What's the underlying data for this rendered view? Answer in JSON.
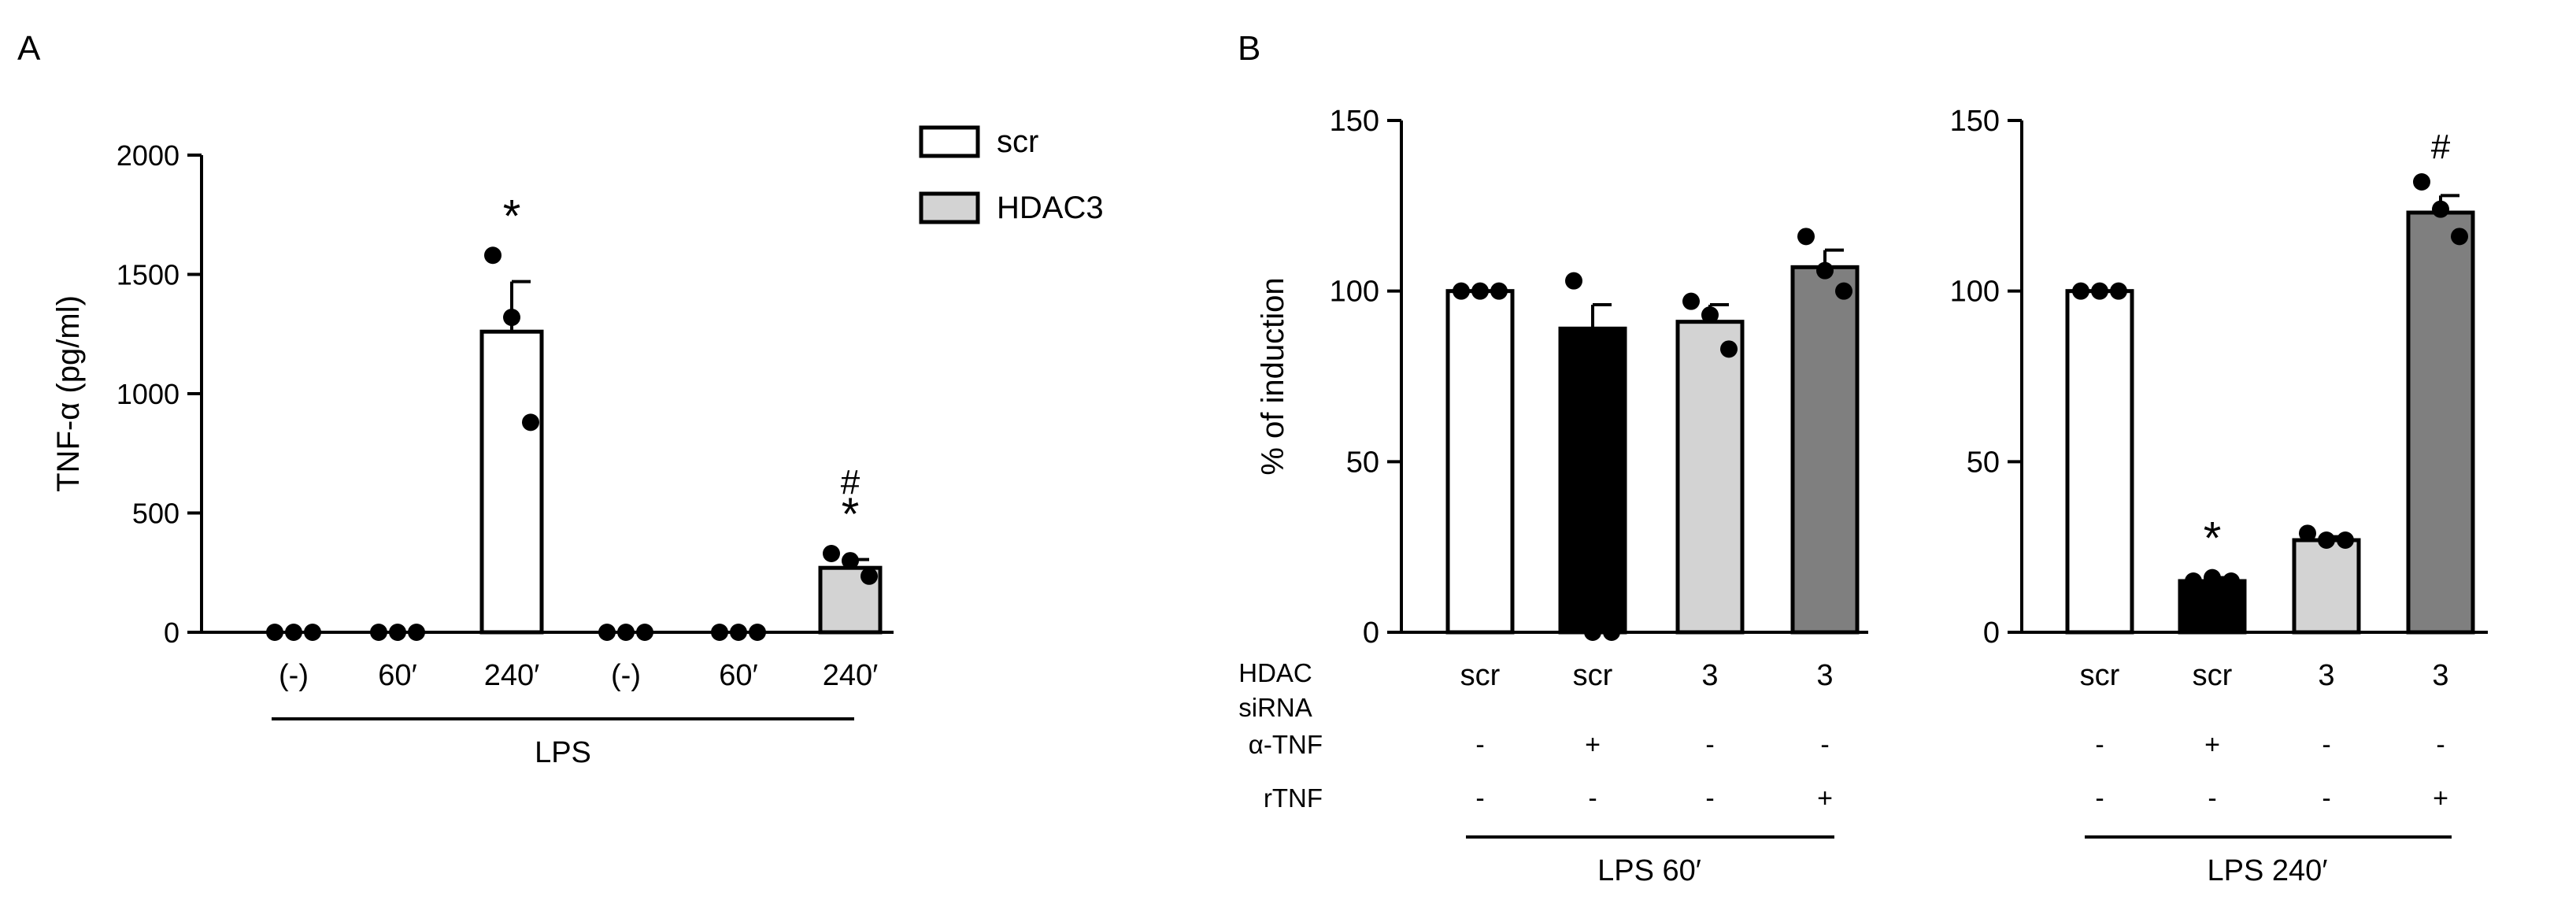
{
  "panel_a": {
    "label": "A",
    "legend": [
      {
        "name": "scr",
        "color": "#ffffff"
      },
      {
        "name": "HDAC3",
        "color": "#d3d3d3"
      }
    ],
    "group_label": "LPS"
  },
  "panel_b": {
    "label": "B",
    "row_labels": {
      "siRNA_line1": "HDAC",
      "siRNA_line2": "siRNA",
      "atnf": "α-TNF",
      "rtnf": "rTNF"
    }
  },
  "chart_data": [
    {
      "type": "bar",
      "panel": "A",
      "ylabel": "TNF-α (pg/ml)",
      "xlabel": "LPS",
      "ylim": [
        0,
        2000
      ],
      "yticks": [
        0,
        500,
        1000,
        1500,
        2000
      ],
      "categories": [
        "(-)",
        "60′",
        "240′",
        "(-)",
        "60′",
        "240′"
      ],
      "group": [
        "scr",
        "scr",
        "scr",
        "HDAC3",
        "HDAC3",
        "HDAC3"
      ],
      "colors": [
        "#ffffff",
        "#ffffff",
        "#ffffff",
        "#d3d3d3",
        "#d3d3d3",
        "#d3d3d3"
      ],
      "values": [
        0,
        0,
        1260,
        0,
        0,
        270
      ],
      "error": [
        0,
        0,
        210,
        0,
        0,
        35
      ],
      "points": [
        [
          0,
          0,
          0
        ],
        [
          0,
          0,
          0
        ],
        [
          1580,
          1320,
          880
        ],
        [
          0,
          0,
          0
        ],
        [
          0,
          0,
          0
        ],
        [
          330,
          300,
          235
        ]
      ],
      "annotations": [
        "",
        "",
        "*",
        "",
        "",
        "#\n*"
      ]
    },
    {
      "type": "bar",
      "panel": "B-left",
      "ylabel": "% of induction",
      "xlabel": "LPS 60′",
      "ylim": [
        0,
        150
      ],
      "yticks": [
        0,
        50,
        100,
        150
      ],
      "categories": [
        "scr",
        "scr",
        "3",
        "3"
      ],
      "alpha_tnf": [
        "-",
        "+",
        "-",
        "-"
      ],
      "rtnf": [
        "-",
        "-",
        "-",
        "+"
      ],
      "colors": [
        "#ffffff",
        "#000000",
        "#d3d3d3",
        "#7f7f7f"
      ],
      "values": [
        100,
        89,
        91,
        107
      ],
      "error": [
        0,
        7,
        5,
        5
      ],
      "points": [
        [
          100,
          100,
          100
        ],
        [
          103,
          0,
          0
        ],
        [
          97,
          93,
          83
        ],
        [
          116,
          106,
          100
        ]
      ],
      "annotations": [
        "",
        "",
        "",
        ""
      ]
    },
    {
      "type": "bar",
      "panel": "B-right",
      "ylabel": "",
      "xlabel": "LPS 240′",
      "ylim": [
        0,
        150
      ],
      "yticks": [
        0,
        50,
        100,
        150
      ],
      "categories": [
        "scr",
        "scr",
        "3",
        "3"
      ],
      "alpha_tnf": [
        "-",
        "+",
        "-",
        "-"
      ],
      "rtnf": [
        "-",
        "-",
        "-",
        "+"
      ],
      "colors": [
        "#ffffff",
        "#000000",
        "#d3d3d3",
        "#7f7f7f"
      ],
      "values": [
        100,
        15,
        27,
        123
      ],
      "error": [
        0,
        1,
        1,
        5
      ],
      "points": [
        [
          100,
          100,
          100
        ],
        [
          15,
          16,
          15
        ],
        [
          29,
          27,
          27
        ],
        [
          132,
          124,
          116
        ]
      ],
      "annotations": [
        "",
        "*",
        "",
        "#"
      ]
    }
  ]
}
